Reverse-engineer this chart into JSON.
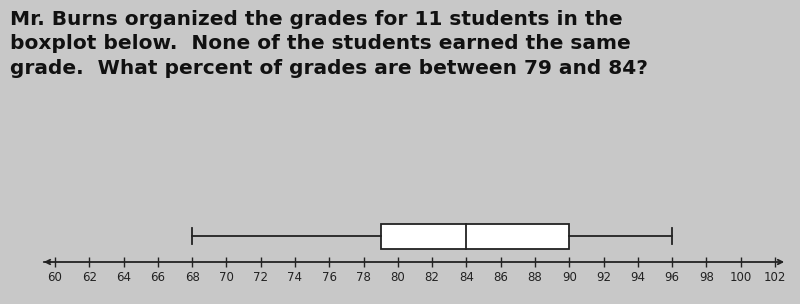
{
  "title_text": "Mr. Burns organized the grades for 11 students in the\nboxplot below.  None of the students earned the same\ngrade.  What percent of grades are between 79 and 84?",
  "title_fontsize": 14.5,
  "whisker_min": 68,
  "Q1": 79,
  "median": 84,
  "Q3": 90,
  "whisker_max": 96,
  "xmin": 58.5,
  "xmax": 103.5,
  "xticks": [
    60,
    62,
    64,
    66,
    68,
    70,
    72,
    74,
    76,
    78,
    80,
    82,
    84,
    86,
    88,
    90,
    92,
    94,
    96,
    98,
    100,
    102
  ],
  "xlabels": [
    "60",
    "62",
    "64",
    "66",
    "68",
    "70",
    "72",
    "74",
    "76",
    "78",
    "80",
    "82",
    "84",
    "86",
    "88",
    "90",
    "92",
    "94",
    "96",
    "98",
    "100",
    "102"
  ],
  "line_color": "#222222",
  "box_facecolor": "#ffffff",
  "bg_color": "#c8c8c8",
  "tick_fontsize": 8.5,
  "title_color": "#111111"
}
